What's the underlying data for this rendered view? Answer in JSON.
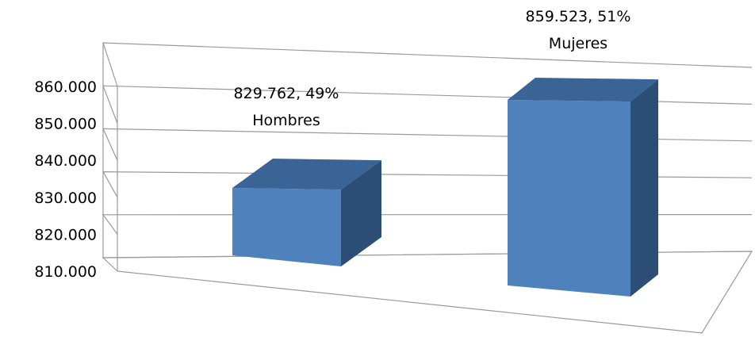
{
  "chart_data": {
    "type": "bar",
    "style": "3d",
    "categories": [
      "Hombres",
      "Mujeres"
    ],
    "values": [
      829762,
      859523
    ],
    "percents": [
      "49%",
      "51%"
    ],
    "data_labels": [
      {
        "value_text": "829.762, 49%",
        "category_text": "Hombres"
      },
      {
        "value_text": "859.523, 51%",
        "category_text": "Mujeres"
      }
    ],
    "y_ticks": [
      "810.000",
      "820.000",
      "830.000",
      "840.000",
      "850.000",
      "860.000"
    ],
    "y_tick_values": [
      810000,
      820000,
      830000,
      840000,
      850000,
      860000
    ],
    "ylim": [
      810000,
      860000
    ],
    "grid": true,
    "legend": "none",
    "colors": {
      "bar_front": "#4f81bd",
      "bar_top": "#3b6496",
      "bar_side": "#2c4d76",
      "gridline": "#9a9a9a"
    }
  }
}
